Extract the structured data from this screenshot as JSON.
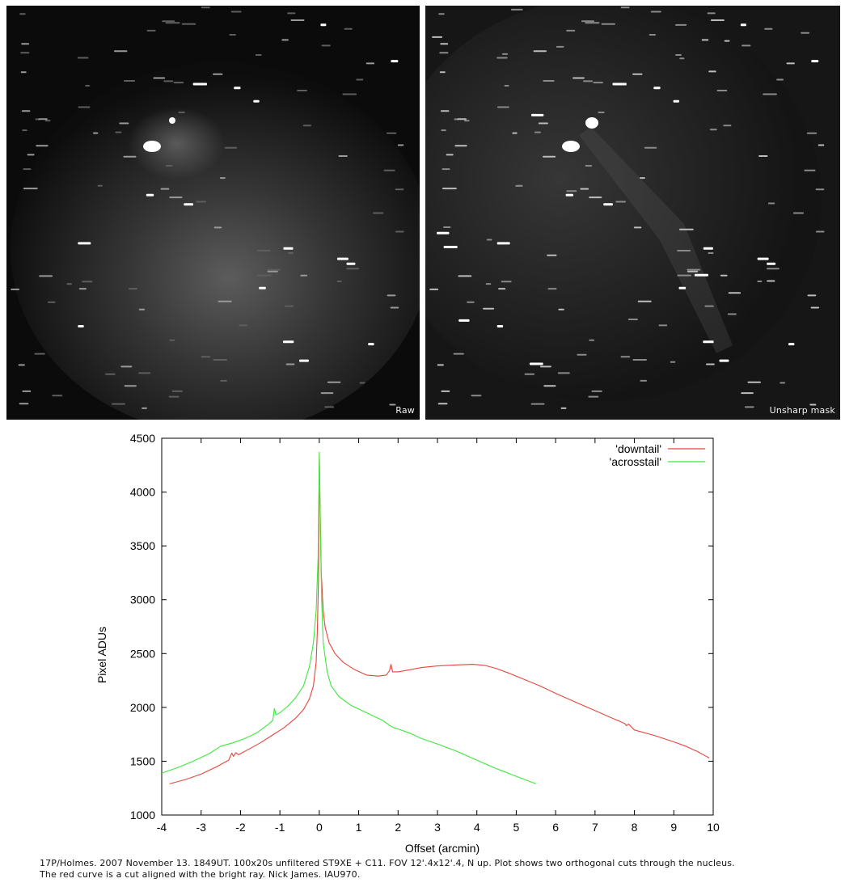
{
  "panels": {
    "raw_label": "Raw",
    "unsharp_label": "Unsharp mask"
  },
  "colors": {
    "downtail": "#e8453c",
    "acrosstail": "#3ce83c",
    "axis": "#000000",
    "sky": "#0b0b0b"
  },
  "chart_data": {
    "type": "line",
    "xlabel": "Offset (arcmin)",
    "ylabel": "Pixel ADUs",
    "xlim": [
      -4,
      10
    ],
    "ylim": [
      1000,
      4500
    ],
    "xticks": [
      -4,
      -3,
      -2,
      -1,
      0,
      1,
      2,
      3,
      4,
      5,
      6,
      7,
      8,
      9,
      10
    ],
    "yticks": [
      1000,
      1500,
      2000,
      2500,
      3000,
      3500,
      4000,
      4500
    ],
    "grid": false,
    "legend_position": "top-right",
    "series": [
      {
        "name": "'downtail'",
        "color": "#e8453c",
        "points": [
          [
            -3.8,
            1290
          ],
          [
            -3.4,
            1330
          ],
          [
            -3.0,
            1380
          ],
          [
            -2.6,
            1450
          ],
          [
            -2.3,
            1510
          ],
          [
            -2.22,
            1575
          ],
          [
            -2.18,
            1545
          ],
          [
            -2.12,
            1580
          ],
          [
            -2.05,
            1560
          ],
          [
            -1.8,
            1610
          ],
          [
            -1.5,
            1670
          ],
          [
            -1.2,
            1740
          ],
          [
            -0.9,
            1810
          ],
          [
            -0.6,
            1900
          ],
          [
            -0.4,
            1980
          ],
          [
            -0.25,
            2080
          ],
          [
            -0.15,
            2200
          ],
          [
            -0.08,
            2420
          ],
          [
            -0.05,
            2700
          ],
          [
            -0.02,
            3200
          ],
          [
            0.0,
            4330
          ],
          [
            0.02,
            3900
          ],
          [
            0.05,
            3250
          ],
          [
            0.1,
            2900
          ],
          [
            0.15,
            2740
          ],
          [
            0.25,
            2600
          ],
          [
            0.4,
            2500
          ],
          [
            0.6,
            2420
          ],
          [
            0.9,
            2350
          ],
          [
            1.2,
            2300
          ],
          [
            1.5,
            2290
          ],
          [
            1.7,
            2300
          ],
          [
            1.78,
            2340
          ],
          [
            1.82,
            2400
          ],
          [
            1.86,
            2330
          ],
          [
            2.0,
            2330
          ],
          [
            2.3,
            2350
          ],
          [
            2.6,
            2370
          ],
          [
            3.0,
            2385
          ],
          [
            3.5,
            2395
          ],
          [
            3.9,
            2400
          ],
          [
            4.2,
            2390
          ],
          [
            4.5,
            2360
          ],
          [
            4.8,
            2320
          ],
          [
            5.2,
            2260
          ],
          [
            5.6,
            2200
          ],
          [
            6.0,
            2130
          ],
          [
            6.5,
            2050
          ],
          [
            7.0,
            1970
          ],
          [
            7.5,
            1890
          ],
          [
            7.75,
            1850
          ],
          [
            7.8,
            1830
          ],
          [
            7.85,
            1845
          ],
          [
            8.0,
            1790
          ],
          [
            8.5,
            1740
          ],
          [
            9.0,
            1680
          ],
          [
            9.3,
            1640
          ],
          [
            9.42,
            1620
          ],
          [
            9.5,
            1605
          ],
          [
            9.6,
            1590
          ],
          [
            9.8,
            1550
          ],
          [
            9.9,
            1530
          ]
        ]
      },
      {
        "name": "'acrosstail'",
        "color": "#3ce83c",
        "points": [
          [
            -4.0,
            1390
          ],
          [
            -3.6,
            1440
          ],
          [
            -3.2,
            1500
          ],
          [
            -2.8,
            1570
          ],
          [
            -2.5,
            1640
          ],
          [
            -2.2,
            1670
          ],
          [
            -1.9,
            1710
          ],
          [
            -1.6,
            1760
          ],
          [
            -1.3,
            1840
          ],
          [
            -1.18,
            1880
          ],
          [
            -1.14,
            1990
          ],
          [
            -1.1,
            1930
          ],
          [
            -1.0,
            1950
          ],
          [
            -0.8,
            2010
          ],
          [
            -0.6,
            2090
          ],
          [
            -0.4,
            2200
          ],
          [
            -0.25,
            2380
          ],
          [
            -0.15,
            2600
          ],
          [
            -0.08,
            2900
          ],
          [
            -0.03,
            3400
          ],
          [
            0.0,
            4370
          ],
          [
            0.03,
            3600
          ],
          [
            0.06,
            3000
          ],
          [
            0.1,
            2600
          ],
          [
            0.2,
            2330
          ],
          [
            0.3,
            2200
          ],
          [
            0.5,
            2100
          ],
          [
            0.8,
            2020
          ],
          [
            1.2,
            1950
          ],
          [
            1.6,
            1880
          ],
          [
            1.8,
            1830
          ],
          [
            1.9,
            1810
          ],
          [
            2.0,
            1800
          ],
          [
            2.3,
            1760
          ],
          [
            2.6,
            1710
          ],
          [
            3.0,
            1660
          ],
          [
            3.5,
            1590
          ],
          [
            4.0,
            1510
          ],
          [
            4.5,
            1430
          ],
          [
            5.0,
            1360
          ],
          [
            5.5,
            1290
          ]
        ]
      }
    ]
  },
  "caption": {
    "line1": "17P/Holmes. 2007 November 13. 1849UT. 100x20s unfiltered ST9XE + C11. FOV 12'.4x12'.4, N up. Plot shows two orthogonal cuts through the nucleus.",
    "line2": "The red curve is a cut aligned with the bright ray. Nick James. IAU970."
  }
}
